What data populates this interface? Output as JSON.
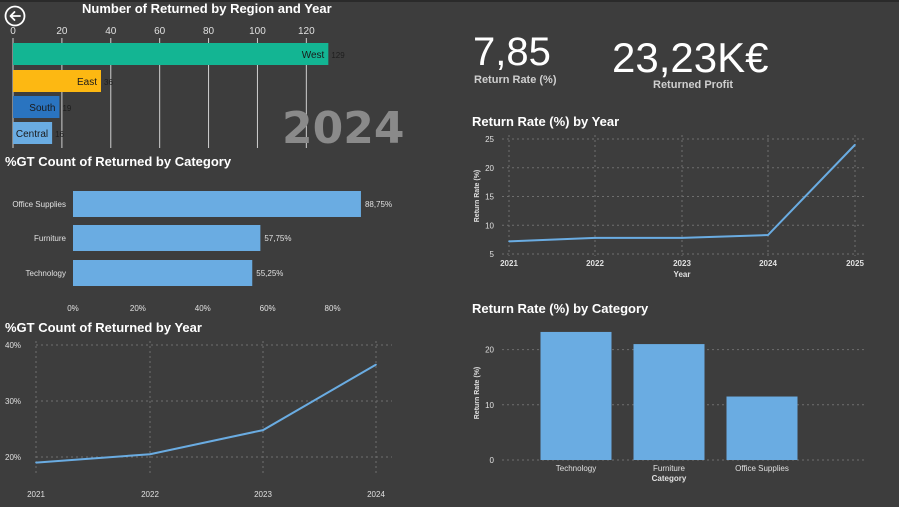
{
  "back_icon": "back-arrow-icon",
  "year_label": "2024",
  "kpis": [
    {
      "value": "7,85",
      "label": "Return Rate (%)"
    },
    {
      "value": "23,23K€",
      "label": "Returned Profit"
    }
  ],
  "chart_data": [
    {
      "id": "region",
      "type": "bar",
      "orientation": "horizontal",
      "title": "Number of Returned by Region and Year",
      "categories": [
        "West",
        "East",
        "South",
        "Central"
      ],
      "values": [
        129,
        36,
        19,
        16
      ],
      "value_labels": [
        "129",
        "36",
        "19",
        "16"
      ],
      "colors": [
        "#13b593",
        "#fdb812",
        "#2a74c0",
        "#6aace2"
      ],
      "xlim": [
        0,
        135
      ],
      "xticks": [
        0,
        20,
        40,
        60,
        80,
        100,
        120
      ],
      "grid": true
    },
    {
      "id": "category_gt",
      "type": "bar",
      "orientation": "horizontal",
      "title": "%GT Count of Returned by Category",
      "categories": [
        "Office Supplies",
        "Furniture",
        "Technology"
      ],
      "values": [
        88.75,
        57.75,
        55.25
      ],
      "value_labels": [
        "88,75%",
        "57,75%",
        "55,25%"
      ],
      "xlim": [
        0,
        90
      ],
      "xticks": [
        0,
        20,
        40,
        60,
        80
      ],
      "xtick_labels": [
        "0%",
        "20%",
        "40%",
        "60%",
        "80%"
      ],
      "color": "#6aace2",
      "grid": false
    },
    {
      "id": "year_gt",
      "type": "line",
      "title": "%GT Count of Returned by Year",
      "x": [
        "2021",
        "2022",
        "2023",
        "2024"
      ],
      "y": [
        19,
        20.5,
        24.8,
        36.5
      ],
      "ylim": [
        17.5,
        40
      ],
      "yticks": [
        20,
        30,
        40
      ],
      "ytick_labels": [
        "20%",
        "30%",
        "40%"
      ],
      "color": "#6aace2",
      "grid": true
    },
    {
      "id": "rate_year",
      "type": "line",
      "title": "Return Rate (%) by Year",
      "x": [
        "2021",
        "2022",
        "2023",
        "2024",
        "2025"
      ],
      "y": [
        7.2,
        7.8,
        7.8,
        8.3,
        24
      ],
      "xlabel": "Year",
      "ylabel": "Return Rate (%)",
      "ylim": [
        5,
        25
      ],
      "yticks": [
        5,
        10,
        15,
        20,
        25
      ],
      "ytick_labels": [
        "5",
        "10",
        "15",
        "20",
        "25"
      ],
      "color": "#6aace2",
      "grid": true
    },
    {
      "id": "rate_category",
      "type": "bar",
      "orientation": "vertical",
      "title": "Return Rate (%) by Category",
      "categories": [
        "Technology",
        "Furniture",
        "Office Supplies"
      ],
      "values": [
        23.2,
        21,
        11.5
      ],
      "xlabel": "Category",
      "ylabel": "Return Rate (%)",
      "ylim": [
        0,
        25
      ],
      "yticks": [
        0,
        10,
        20
      ],
      "ytick_labels": [
        "0",
        "10",
        "20"
      ],
      "color": "#6aace2",
      "grid": true
    }
  ]
}
